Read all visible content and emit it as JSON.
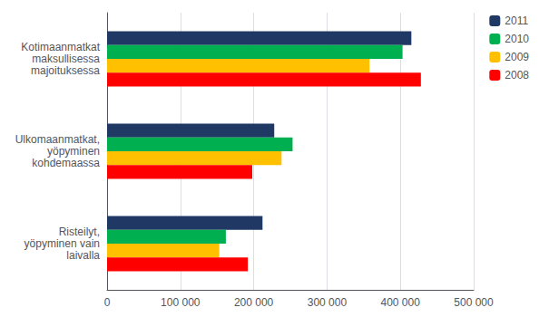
{
  "chart_data": {
    "type": "bar",
    "orientation": "horizontal",
    "categories": [
      "Kotimaanmatkat\nmaksullisessa\nmajoituksessa",
      "Ulkomaanmatkat,\nyöpyminen\nkohdemaassa",
      "Risteilyt,\nyöpyminen vain\nlaivalla"
    ],
    "series": [
      {
        "name": "2011",
        "color": "#1F3864",
        "values": [
          415000,
          228000,
          212000
        ]
      },
      {
        "name": "2010",
        "color": "#00B050",
        "values": [
          403000,
          253000,
          162000
        ]
      },
      {
        "name": "2009",
        "color": "#FFC000",
        "values": [
          358000,
          238000,
          153000
        ]
      },
      {
        "name": "2008",
        "color": "#FF0000",
        "values": [
          428000,
          198000,
          192000
        ]
      }
    ],
    "xlim": [
      0,
      500000
    ],
    "xticks": [
      0,
      {
        "value": 100000,
        "label": "100 000"
      },
      {
        "value": 200000,
        "label": "200 000"
      },
      {
        "value": 300000,
        "label": "300 000"
      },
      {
        "value": 400000,
        "label": "400 000"
      },
      {
        "value": 500000,
        "label": "500 000"
      }
    ],
    "grid": true,
    "legend": "upper right"
  }
}
